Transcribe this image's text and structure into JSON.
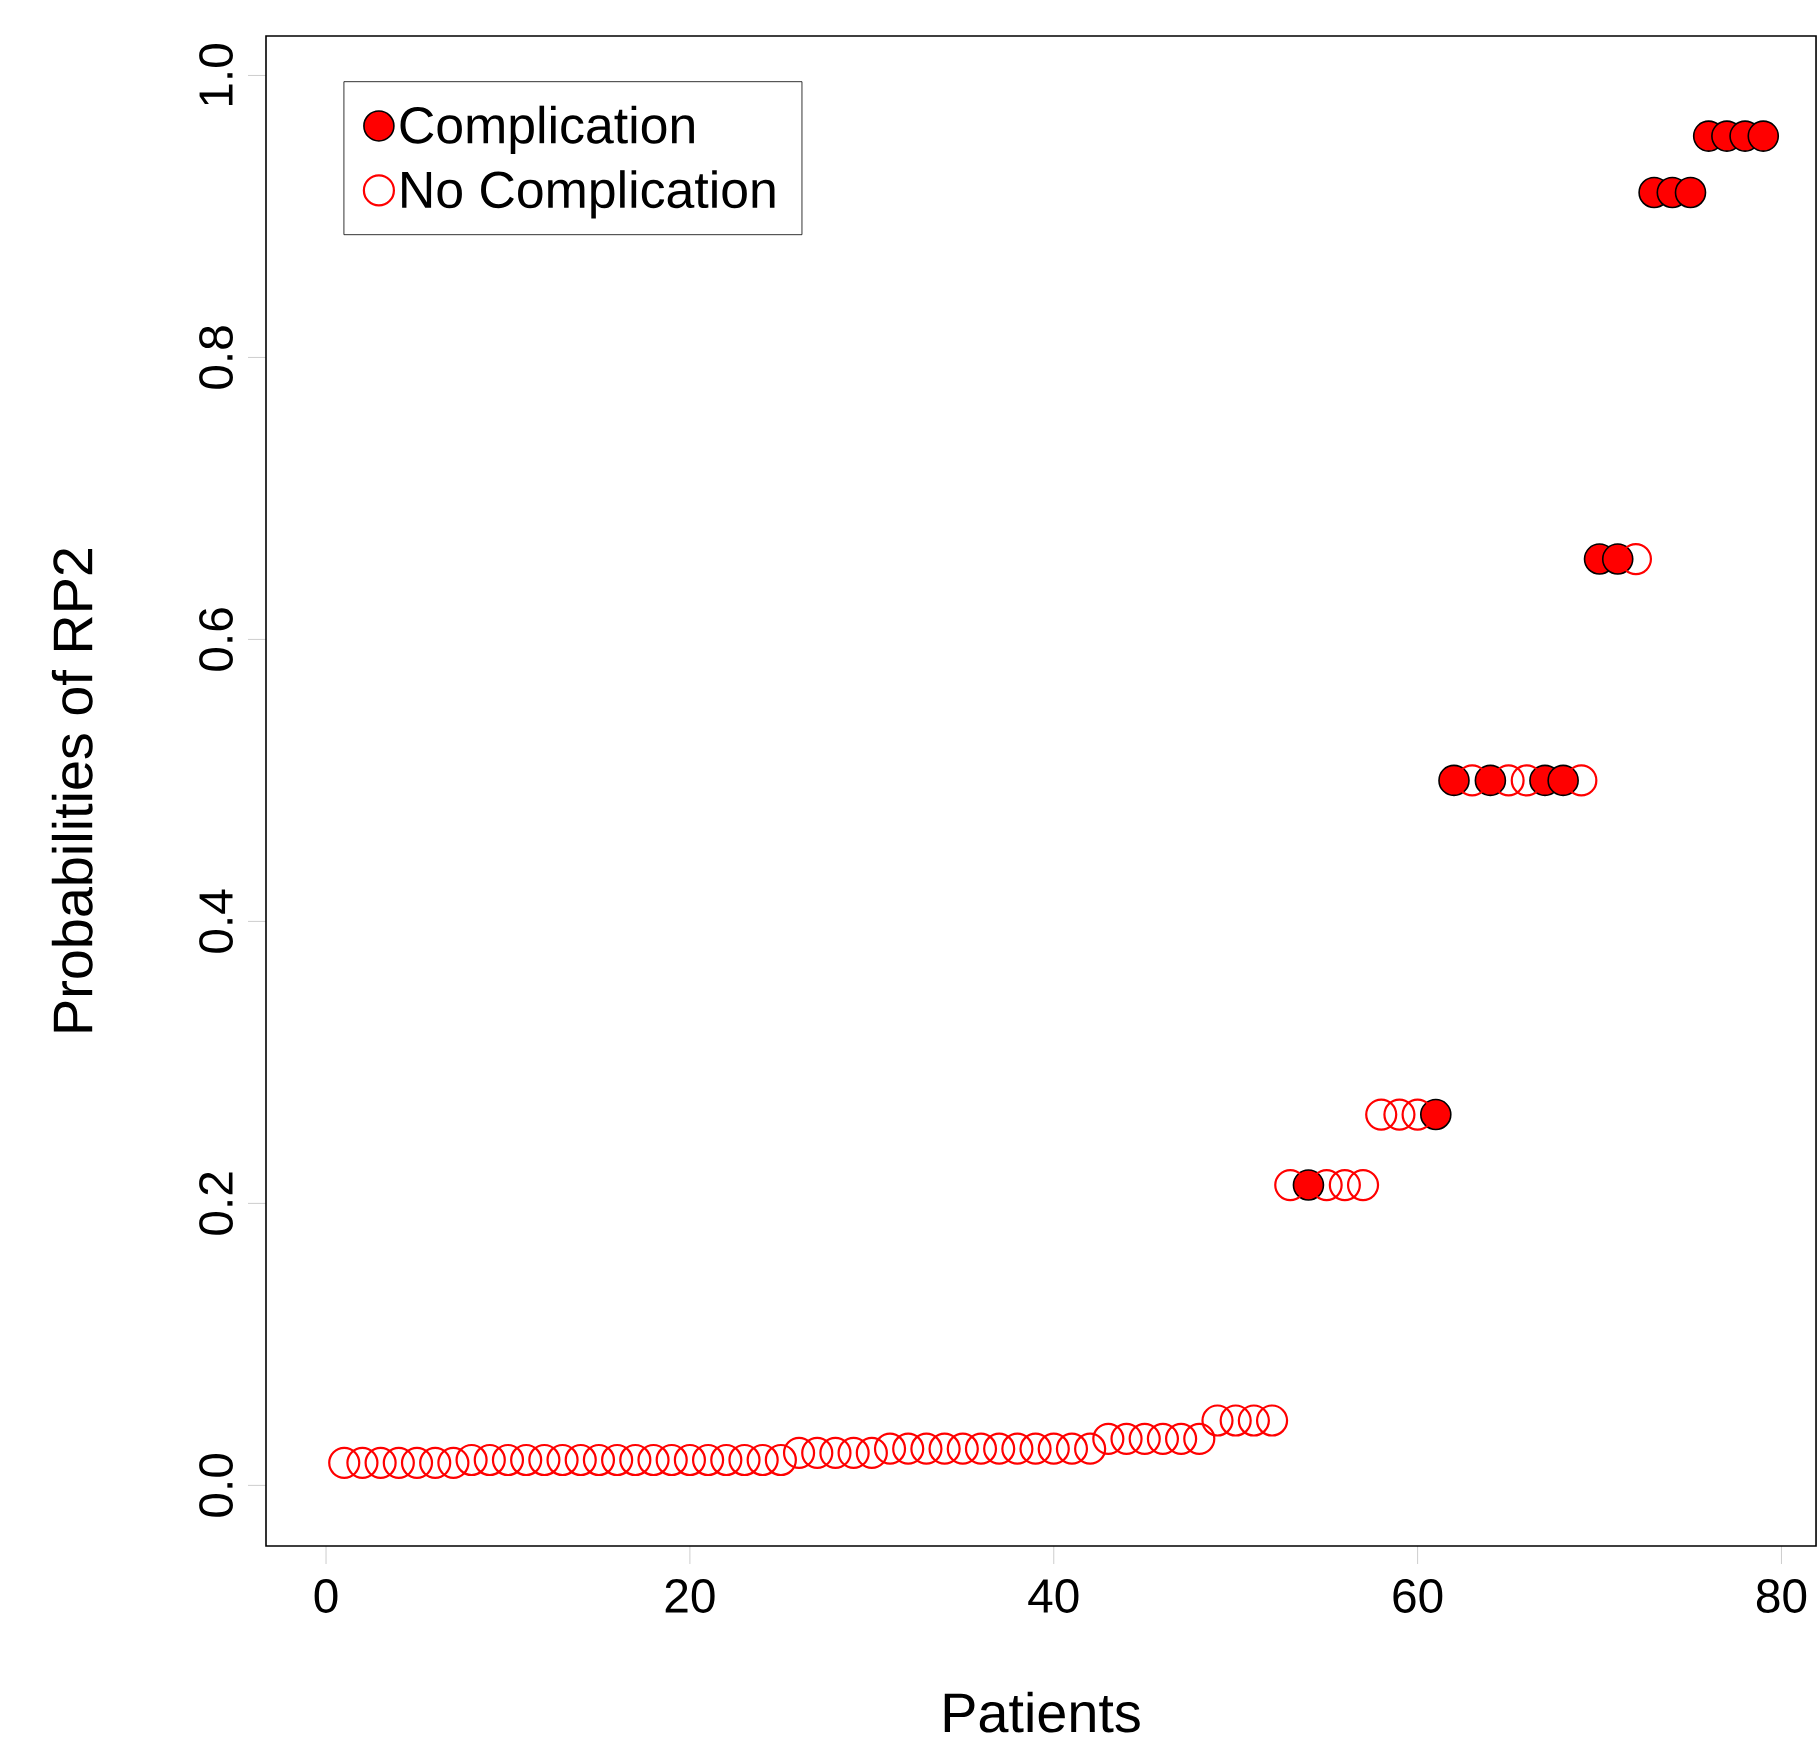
{
  "chart_data": {
    "type": "scatter",
    "xlabel": "Patients",
    "ylabel": "Probabilities of RP2",
    "xlim": [
      -3.3,
      81.9
    ],
    "ylim": [
      -0.043,
      1.028
    ],
    "xticks": [
      0,
      20,
      40,
      60,
      80
    ],
    "yticks": [
      {
        "value": 0,
        "label": "0.0"
      },
      0.2,
      0.4,
      0.6,
      0.8,
      {
        "value": 1,
        "label": "1.0"
      }
    ],
    "marker": "circle",
    "legend": "top left",
    "grid": false,
    "series": [
      {
        "name": "Complication",
        "color": "#ff0000",
        "x": [
          54,
          61,
          62,
          64,
          67,
          68,
          70,
          71,
          73,
          74,
          75,
          76,
          77,
          78,
          79
        ],
        "values": [
          0.213,
          0.263,
          0.5,
          0.5,
          0.5,
          0.5,
          0.657,
          0.657,
          0.917,
          0.917,
          0.917,
          0.957,
          0.957,
          0.957,
          0.957
        ]
      },
      {
        "name": "No Complication",
        "color": "#ff0000",
        "x": [
          1,
          2,
          3,
          4,
          5,
          6,
          7,
          8,
          9,
          10,
          11,
          12,
          13,
          14,
          15,
          16,
          17,
          18,
          19,
          20,
          21,
          22,
          23,
          24,
          25,
          26,
          27,
          28,
          29,
          30,
          31,
          32,
          33,
          34,
          35,
          36,
          37,
          38,
          39,
          40,
          41,
          42,
          43,
          44,
          45,
          46,
          47,
          48,
          49,
          50,
          51,
          52,
          53,
          55,
          56,
          57,
          58,
          59,
          60,
          63,
          65,
          66,
          69,
          72
        ],
        "values": [
          0.016,
          0.016,
          0.016,
          0.016,
          0.016,
          0.016,
          0.016,
          0.018,
          0.018,
          0.018,
          0.018,
          0.018,
          0.018,
          0.018,
          0.018,
          0.018,
          0.018,
          0.018,
          0.018,
          0.018,
          0.018,
          0.018,
          0.018,
          0.018,
          0.018,
          0.023,
          0.023,
          0.023,
          0.023,
          0.023,
          0.026,
          0.026,
          0.026,
          0.026,
          0.026,
          0.026,
          0.026,
          0.026,
          0.026,
          0.026,
          0.026,
          0.026,
          0.033,
          0.033,
          0.033,
          0.033,
          0.033,
          0.033,
          0.046,
          0.046,
          0.046,
          0.046,
          0.213,
          0.213,
          0.213,
          0.213,
          0.263,
          0.263,
          0.263,
          0.5,
          0.5,
          0.5,
          0.5,
          0.657
        ]
      }
    ]
  }
}
